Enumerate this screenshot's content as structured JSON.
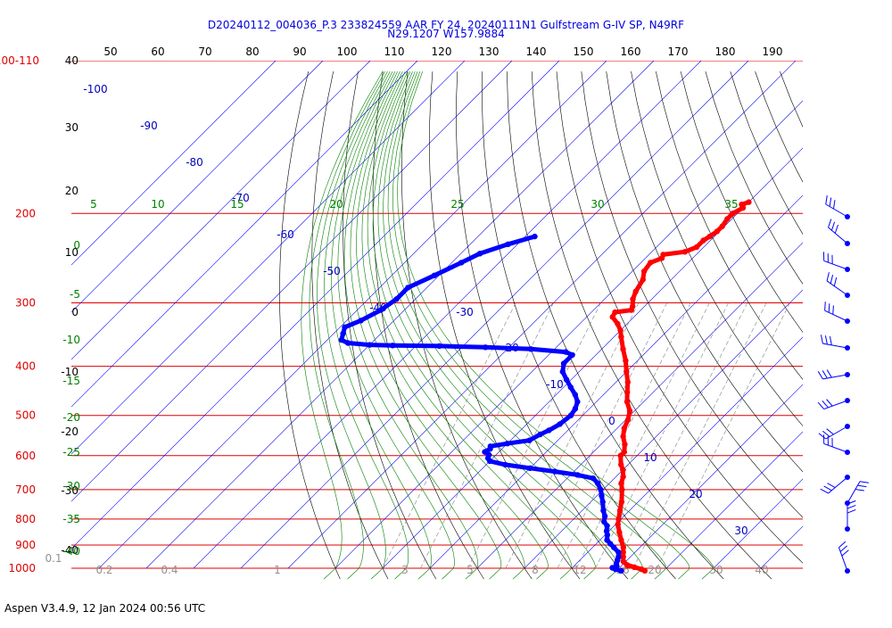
{
  "chart_data": {
    "type": "line",
    "subtype": "skew-T log-P sounding diagram",
    "title": "D20240112_004036_P.3 233824559 AAR FY 24, 20240111N1 Gulfstream G-IV SP, N49RF",
    "subtitle": "N29.1207 W157.9884",
    "footer": "Aspen V3.4.9, 12 Jan 2024  00:56 UTC",
    "grid": true,
    "pressure_axis": {
      "scale": "log",
      "range_hpa": [
        1000,
        100
      ],
      "tick_labels": [
        {
          "p": 100,
          "label": "100-110"
        },
        {
          "p": 200,
          "label": "200"
        },
        {
          "p": 300,
          "label": "300"
        },
        {
          "p": 400,
          "label": "400"
        },
        {
          "p": 500,
          "label": "500"
        },
        {
          "p": 600,
          "label": "600"
        },
        {
          "p": 700,
          "label": "700"
        },
        {
          "p": 800,
          "label": "800"
        },
        {
          "p": 900,
          "label": "900"
        },
        {
          "p": 1000,
          "label": "1000"
        }
      ]
    },
    "top_axis_labels": [
      "50",
      "60",
      "70",
      "80",
      "90",
      "100",
      "110",
      "120",
      "130",
      "140",
      "150",
      "160",
      "170",
      "180",
      "190"
    ],
    "left_black_labels": [
      "40",
      "30",
      "20",
      "10",
      "0",
      "-10",
      "-20",
      "-30",
      "-40"
    ],
    "temperature_labels": [
      "-100",
      "-90",
      "-80",
      "-70",
      "-60",
      "-50",
      "-40",
      "-30",
      "-20",
      "-10",
      "0",
      "10",
      "20",
      "30"
    ],
    "adiabat_labels_top": [
      "5",
      "10",
      "15",
      "20",
      "25",
      "30",
      "35"
    ],
    "adiabat_labels_left": [
      "0",
      "-5",
      "-10",
      "-15",
      "-20",
      "-25",
      "-30",
      "-35",
      "-40"
    ],
    "mixing_ratio_labels": [
      "0.1",
      "0.2",
      "0.4",
      "1",
      "3",
      "5",
      "8",
      "12",
      "16",
      "20",
      "30",
      "40"
    ],
    "series": [
      {
        "color": "#ff0000",
        "points": [
          [
            1012,
            26
          ],
          [
            1005,
            25
          ],
          [
            995,
            23
          ],
          [
            985,
            21
          ],
          [
            970,
            19.5
          ],
          [
            950,
            18.5
          ],
          [
            930,
            17.5
          ],
          [
            910,
            16.5
          ],
          [
            880,
            14.5
          ],
          [
            850,
            12.5
          ],
          [
            820,
            10.5
          ],
          [
            800,
            9.5
          ],
          [
            770,
            8
          ],
          [
            740,
            6.5
          ],
          [
            700,
            4
          ],
          [
            680,
            2.5
          ],
          [
            660,
            1.5
          ],
          [
            640,
            0
          ],
          [
            625,
            -1.5
          ],
          [
            600,
            -3.5
          ],
          [
            590,
            -3.5
          ],
          [
            570,
            -5
          ],
          [
            550,
            -7
          ],
          [
            530,
            -8.5
          ],
          [
            510,
            -9.5
          ],
          [
            490,
            -11
          ],
          [
            470,
            -13.5
          ],
          [
            450,
            -15.5
          ],
          [
            430,
            -17.5
          ],
          [
            410,
            -20
          ],
          [
            390,
            -22.5
          ],
          [
            370,
            -25.5
          ],
          [
            350,
            -28.5
          ],
          [
            340,
            -30
          ],
          [
            330,
            -32
          ],
          [
            320,
            -34.5
          ],
          [
            313,
            -35
          ],
          [
            310,
            -32
          ],
          [
            305,
            -32.5
          ],
          [
            295,
            -34
          ],
          [
            285,
            -35
          ],
          [
            270,
            -36
          ],
          [
            260,
            -37.5
          ],
          [
            250,
            -38
          ],
          [
            245,
            -36.5
          ],
          [
            241,
            -37
          ],
          [
            238,
            -33
          ],
          [
            233,
            -31.5
          ],
          [
            226,
            -31.5
          ],
          [
            222,
            -31
          ],
          [
            217,
            -30.5
          ],
          [
            212,
            -30.5
          ],
          [
            205,
            -31
          ],
          [
            200,
            -31
          ],
          [
            195,
            -30
          ],
          [
            192,
            -31
          ],
          [
            190,
            -30
          ]
        ]
      },
      {
        "color": "#0000ff",
        "points": [
          [
            1012,
            21
          ],
          [
            1005,
            19.5
          ],
          [
            998,
            18.5
          ],
          [
            990,
            19
          ],
          [
            980,
            18.5
          ],
          [
            965,
            18
          ],
          [
            950,
            17.5
          ],
          [
            930,
            16.5
          ],
          [
            910,
            14.5
          ],
          [
            895,
            13
          ],
          [
            880,
            11.5
          ],
          [
            860,
            10.5
          ],
          [
            845,
            9.5
          ],
          [
            825,
            8.5
          ],
          [
            810,
            7
          ],
          [
            790,
            6
          ],
          [
            770,
            4.5
          ],
          [
            740,
            2.5
          ],
          [
            720,
            1
          ],
          [
            700,
            -0.5
          ],
          [
            680,
            -2.5
          ],
          [
            665,
            -4.5
          ],
          [
            655,
            -8.5
          ],
          [
            645,
            -14
          ],
          [
            635,
            -20
          ],
          [
            625,
            -26
          ],
          [
            615,
            -30
          ],
          [
            607,
            -31
          ],
          [
            598,
            -31.5
          ],
          [
            590,
            -33
          ],
          [
            582,
            -32.5
          ],
          [
            575,
            -33
          ],
          [
            568,
            -30
          ],
          [
            560,
            -26
          ],
          [
            545,
            -25
          ],
          [
            535,
            -24
          ],
          [
            520,
            -23
          ],
          [
            500,
            -22.5
          ],
          [
            485,
            -23
          ],
          [
            470,
            -24
          ],
          [
            455,
            -26
          ],
          [
            440,
            -28.5
          ],
          [
            425,
            -31
          ],
          [
            410,
            -33.5
          ],
          [
            395,
            -35
          ],
          [
            380,
            -35
          ],
          [
            375,
            -37
          ],
          [
            370,
            -45
          ],
          [
            367,
            -55
          ],
          [
            365,
            -65
          ],
          [
            364,
            -75
          ],
          [
            363,
            -80
          ],
          [
            360,
            -85
          ],
          [
            355,
            -87
          ],
          [
            345,
            -88
          ],
          [
            335,
            -89
          ],
          [
            325,
            -87
          ],
          [
            310,
            -85
          ],
          [
            295,
            -84
          ],
          [
            280,
            -84
          ],
          [
            265,
            -81
          ],
          [
            250,
            -78
          ],
          [
            240,
            -76
          ],
          [
            230,
            -72
          ],
          [
            222,
            -68
          ]
        ]
      }
    ],
    "wind_barbs": [
      "barb-1",
      "barb-2",
      "barb-3",
      "barb-4",
      "barb-5",
      "barb-6",
      "barb-7",
      "barb-8",
      "barb-9",
      "barb-10",
      "barb-11",
      "barb-12",
      "barb-13",
      "barb-14"
    ]
  }
}
